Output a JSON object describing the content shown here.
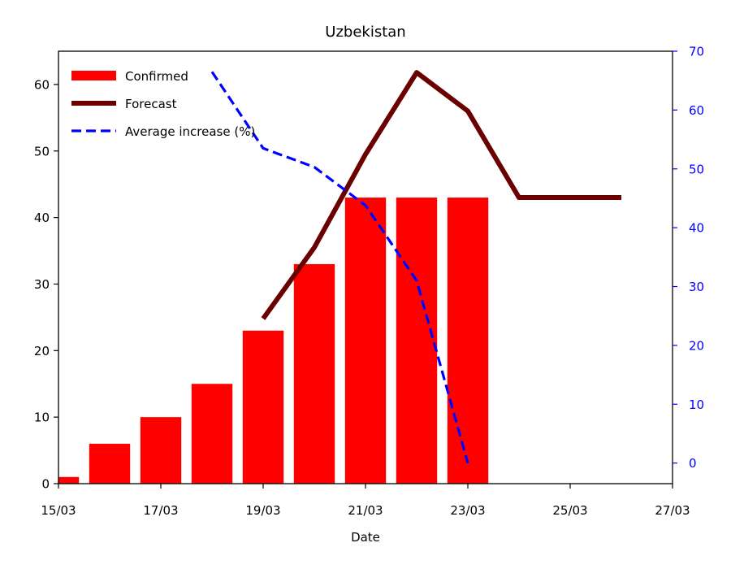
{
  "chart_data": {
    "type": "bar",
    "title": "Uzbekistan",
    "xlabel": "Date",
    "ylabel": "",
    "x_tick_labels": [
      "15/03",
      "17/03",
      "19/03",
      "21/03",
      "23/03",
      "25/03",
      "27/03"
    ],
    "xlim_days": [
      15,
      27
    ],
    "ylim_left": [
      0,
      65
    ],
    "ylim_right": [
      -3.5,
      70
    ],
    "y_ticks_left": [
      0,
      10,
      20,
      30,
      40,
      50,
      60
    ],
    "y_ticks_right": [
      0,
      10,
      20,
      30,
      40,
      50,
      60,
      70
    ],
    "right_axis_color": "#0000ff",
    "legend_position": "top-left",
    "series": [
      {
        "name": "Confirmed",
        "kind": "bar",
        "axis": "left",
        "color": "#ff0000",
        "points": [
          {
            "date": "15/03",
            "value": 1
          },
          {
            "date": "16/03",
            "value": 6
          },
          {
            "date": "17/03",
            "value": 10
          },
          {
            "date": "18/03",
            "value": 15
          },
          {
            "date": "19/03",
            "value": 23
          },
          {
            "date": "20/03",
            "value": 33
          },
          {
            "date": "21/03",
            "value": 43
          },
          {
            "date": "22/03",
            "value": 43
          },
          {
            "date": "23/03",
            "value": 43
          }
        ]
      },
      {
        "name": "Forecast",
        "kind": "line",
        "axis": "left",
        "color": "#6b0000",
        "points": [
          {
            "date": "19/03",
            "value": 24.8
          },
          {
            "date": "20/03",
            "value": 35.5
          },
          {
            "date": "21/03",
            "value": 49.5
          },
          {
            "date": "22/03",
            "value": 61.8
          },
          {
            "date": "23/03",
            "value": 56
          },
          {
            "date": "24/03",
            "value": 43
          },
          {
            "date": "25/03",
            "value": 43
          },
          {
            "date": "26/03",
            "value": 43
          }
        ]
      },
      {
        "name": "Average increase (%)",
        "kind": "dashed-line",
        "axis": "right",
        "color": "#0000ff",
        "points": [
          {
            "date": "18/03",
            "value": 66.5
          },
          {
            "date": "19/03",
            "value": 53.5
          },
          {
            "date": "20/03",
            "value": 50.3
          },
          {
            "date": "21/03",
            "value": 43.8
          },
          {
            "date": "22/03",
            "value": 31
          },
          {
            "date": "23/03",
            "value": 0
          }
        ]
      }
    ]
  }
}
